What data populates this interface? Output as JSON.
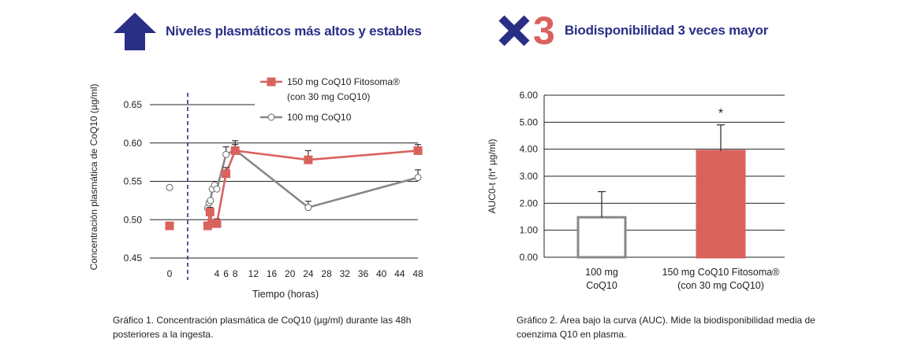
{
  "header_left": {
    "title": "Niveles plasmáticos más altos y estables",
    "icon": "up-arrow-icon",
    "color": "#2a2f86"
  },
  "header_right": {
    "multiplier_symbol": "×",
    "multiplier_number": "3",
    "title": "Biodisponibilidad 3 veces mayor",
    "number_color": "#d9625d"
  },
  "captions": {
    "chart1": "Gráfico 1. Concentración plasmática de CoQ10 (µg/ml) durante las 48h posteriores a la ingesta.",
    "chart2": "Gráfico 2. Área bajo la curva (AUC). Mide la biodisponibilidad media de coenzima Q10 en plasma."
  },
  "chart_data": [
    {
      "type": "line",
      "xlabel": "Tiempo (horas)",
      "ylabel": "Concentración plasmática de CoQ10 (µg/ml)",
      "ylim": [
        0.45,
        0.65
      ],
      "y_ticks": [
        "0.45",
        "0.50",
        "0.55",
        "0.60",
        "0.65"
      ],
      "x_ticks": [
        "0",
        "4",
        "6",
        "8",
        "12",
        "16",
        "20",
        "24",
        "28",
        "32",
        "36",
        "40",
        "44",
        "48"
      ],
      "baseline_label": "0",
      "legend_position": "top-right",
      "grid": true,
      "series": [
        {
          "name": "150 mg CoQ10 Fitosoma® (con 30 mg CoQ10)",
          "legend_line1": "150 mg CoQ10 Fitosoma®",
          "legend_line2": "(con 30 mg CoQ10)",
          "color": "#d9625d",
          "marker": "square",
          "baseline_value": 0.492,
          "x": [
            2,
            2.5,
            3,
            4,
            6,
            8,
            24,
            48
          ],
          "y": [
            0.492,
            0.51,
            0.495,
            0.495,
            0.56,
            0.59,
            0.578,
            0.59
          ],
          "error": [
            0.0,
            0.006,
            0.0,
            0.006,
            0.008,
            0.008,
            0.012,
            0.008
          ]
        },
        {
          "name": "100 mg CoQ10",
          "legend_line1": "100 mg CoQ10",
          "color": "#888888",
          "marker": "open-circle",
          "baseline_value": 0.542,
          "x": [
            2,
            2.3,
            2.6,
            3,
            3.5,
            4,
            6,
            8,
            24,
            48
          ],
          "y": [
            0.515,
            0.522,
            0.525,
            0.54,
            0.545,
            0.54,
            0.585,
            0.591,
            0.516,
            0.555
          ],
          "error": [
            0.0,
            0.0,
            0.0,
            0.0,
            0.0,
            0.0,
            0.01,
            0.012,
            0.008,
            0.01
          ]
        }
      ]
    },
    {
      "type": "bar",
      "ylabel": "AUC0-t (h* µg/ml)",
      "ylim": [
        0,
        6
      ],
      "y_ticks": [
        "0.00",
        "1.00",
        "2.00",
        "3.00",
        "4.00",
        "5.00",
        "6.00"
      ],
      "categories": [
        {
          "line1": "100 mg",
          "line2": "CoQ10"
        },
        {
          "line1": "150 mg CoQ10 Fitosoma®",
          "line2": "(con 30 mg CoQ10)"
        }
      ],
      "values": [
        1.48,
        3.93
      ],
      "errors": [
        0.95,
        0.97
      ],
      "fills": [
        "#ffffff",
        "#d9625d"
      ],
      "strokes": [
        "#888888",
        "#d9625d"
      ],
      "significance": "*",
      "grid": true
    }
  ]
}
